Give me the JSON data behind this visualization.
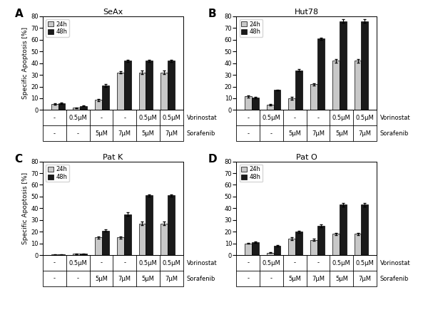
{
  "panels": [
    {
      "label": "A",
      "title": "SeAx",
      "data_24h": [
        5.0,
        2.0,
        8.5,
        32.0,
        32.0,
        32.0
      ],
      "data_48h": [
        5.5,
        3.5,
        21.0,
        42.0,
        42.0,
        42.0
      ],
      "err_24h": [
        0.5,
        0.3,
        0.8,
        1.0,
        1.5,
        1.5
      ],
      "err_48h": [
        0.5,
        0.5,
        1.0,
        1.0,
        1.0,
        1.0
      ],
      "ylim": [
        0,
        80
      ]
    },
    {
      "label": "B",
      "title": "Hut78",
      "data_24h": [
        11.5,
        4.5,
        10.0,
        22.0,
        42.0,
        42.0
      ],
      "data_48h": [
        10.5,
        17.0,
        34.0,
        61.0,
        76.0,
        76.0
      ],
      "err_24h": [
        0.8,
        0.5,
        1.0,
        1.0,
        1.5,
        1.5
      ],
      "err_48h": [
        0.8,
        0.5,
        1.0,
        1.0,
        1.5,
        1.5
      ],
      "ylim": [
        0,
        80
      ]
    },
    {
      "label": "C",
      "title": "Pat K",
      "data_24h": [
        0.5,
        1.0,
        15.0,
        15.0,
        27.0,
        27.0
      ],
      "data_48h": [
        0.5,
        1.0,
        21.0,
        35.0,
        51.0,
        51.0
      ],
      "err_24h": [
        0.2,
        0.3,
        0.8,
        0.8,
        1.5,
        1.5
      ],
      "err_48h": [
        0.2,
        0.5,
        1.0,
        1.5,
        1.0,
        1.0
      ],
      "ylim": [
        0,
        80
      ]
    },
    {
      "label": "D",
      "title": "Pat O",
      "data_24h": [
        10.0,
        2.0,
        14.0,
        13.0,
        18.0,
        18.0
      ],
      "data_48h": [
        11.0,
        8.0,
        20.0,
        25.0,
        43.0,
        43.0
      ],
      "err_24h": [
        0.5,
        0.3,
        1.0,
        0.8,
        1.0,
        1.0
      ],
      "err_48h": [
        0.5,
        0.5,
        1.0,
        1.0,
        1.5,
        1.5
      ],
      "ylim": [
        0,
        80
      ]
    }
  ],
  "xtick_labels_row1": [
    "-",
    "0.5μM",
    "-",
    "-",
    "0.5μM",
    "0.5μM"
  ],
  "xtick_labels_row2": [
    "-",
    "-",
    "5μM",
    "7μM",
    "5μM",
    "7μM"
  ],
  "row1_label": "Vorinostat",
  "row2_label": "Sorafenib",
  "ylabel": "Specific Apoptosis [%]",
  "color_24h": "#c8c8c8",
  "color_48h": "#1a1a1a",
  "bar_width": 0.32,
  "legend_24h": "24h",
  "legend_48h": "48h"
}
